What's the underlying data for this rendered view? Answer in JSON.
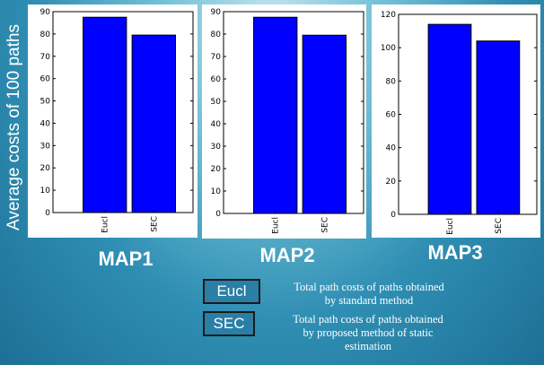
{
  "y_axis_label": "Average costs of 100 paths",
  "chart_data": [
    {
      "type": "bar",
      "title": "MAP1",
      "categories": [
        "Eucl",
        "SEC"
      ],
      "values": [
        87.5,
        79.5
      ],
      "ylim": [
        0,
        90
      ],
      "yticks": [
        0,
        10,
        20,
        30,
        40,
        50,
        60,
        70,
        80,
        90
      ],
      "bar_color": "#0000ff"
    },
    {
      "type": "bar",
      "title": "MAP2",
      "categories": [
        "Eucl",
        "SEC"
      ],
      "values": [
        87.5,
        79.5
      ],
      "ylim": [
        0,
        90
      ],
      "yticks": [
        0,
        10,
        20,
        30,
        40,
        50,
        60,
        70,
        80,
        90
      ],
      "bar_color": "#0000ff"
    },
    {
      "type": "bar",
      "title": "MAP3",
      "categories": [
        "Eucl",
        "SEC"
      ],
      "values": [
        114,
        104
      ],
      "ylim": [
        0,
        120
      ],
      "yticks": [
        0,
        20,
        40,
        60,
        80,
        100,
        120
      ],
      "bar_color": "#0000ff"
    }
  ],
  "legend": [
    {
      "label": "Eucl",
      "desc_lines": [
        "Total path costs of  paths obtained",
        "by standard method"
      ]
    },
    {
      "label": "SEC",
      "desc_lines": [
        "Total path costs of  paths obtained",
        "by proposed method of  static",
        "estimation"
      ]
    }
  ]
}
